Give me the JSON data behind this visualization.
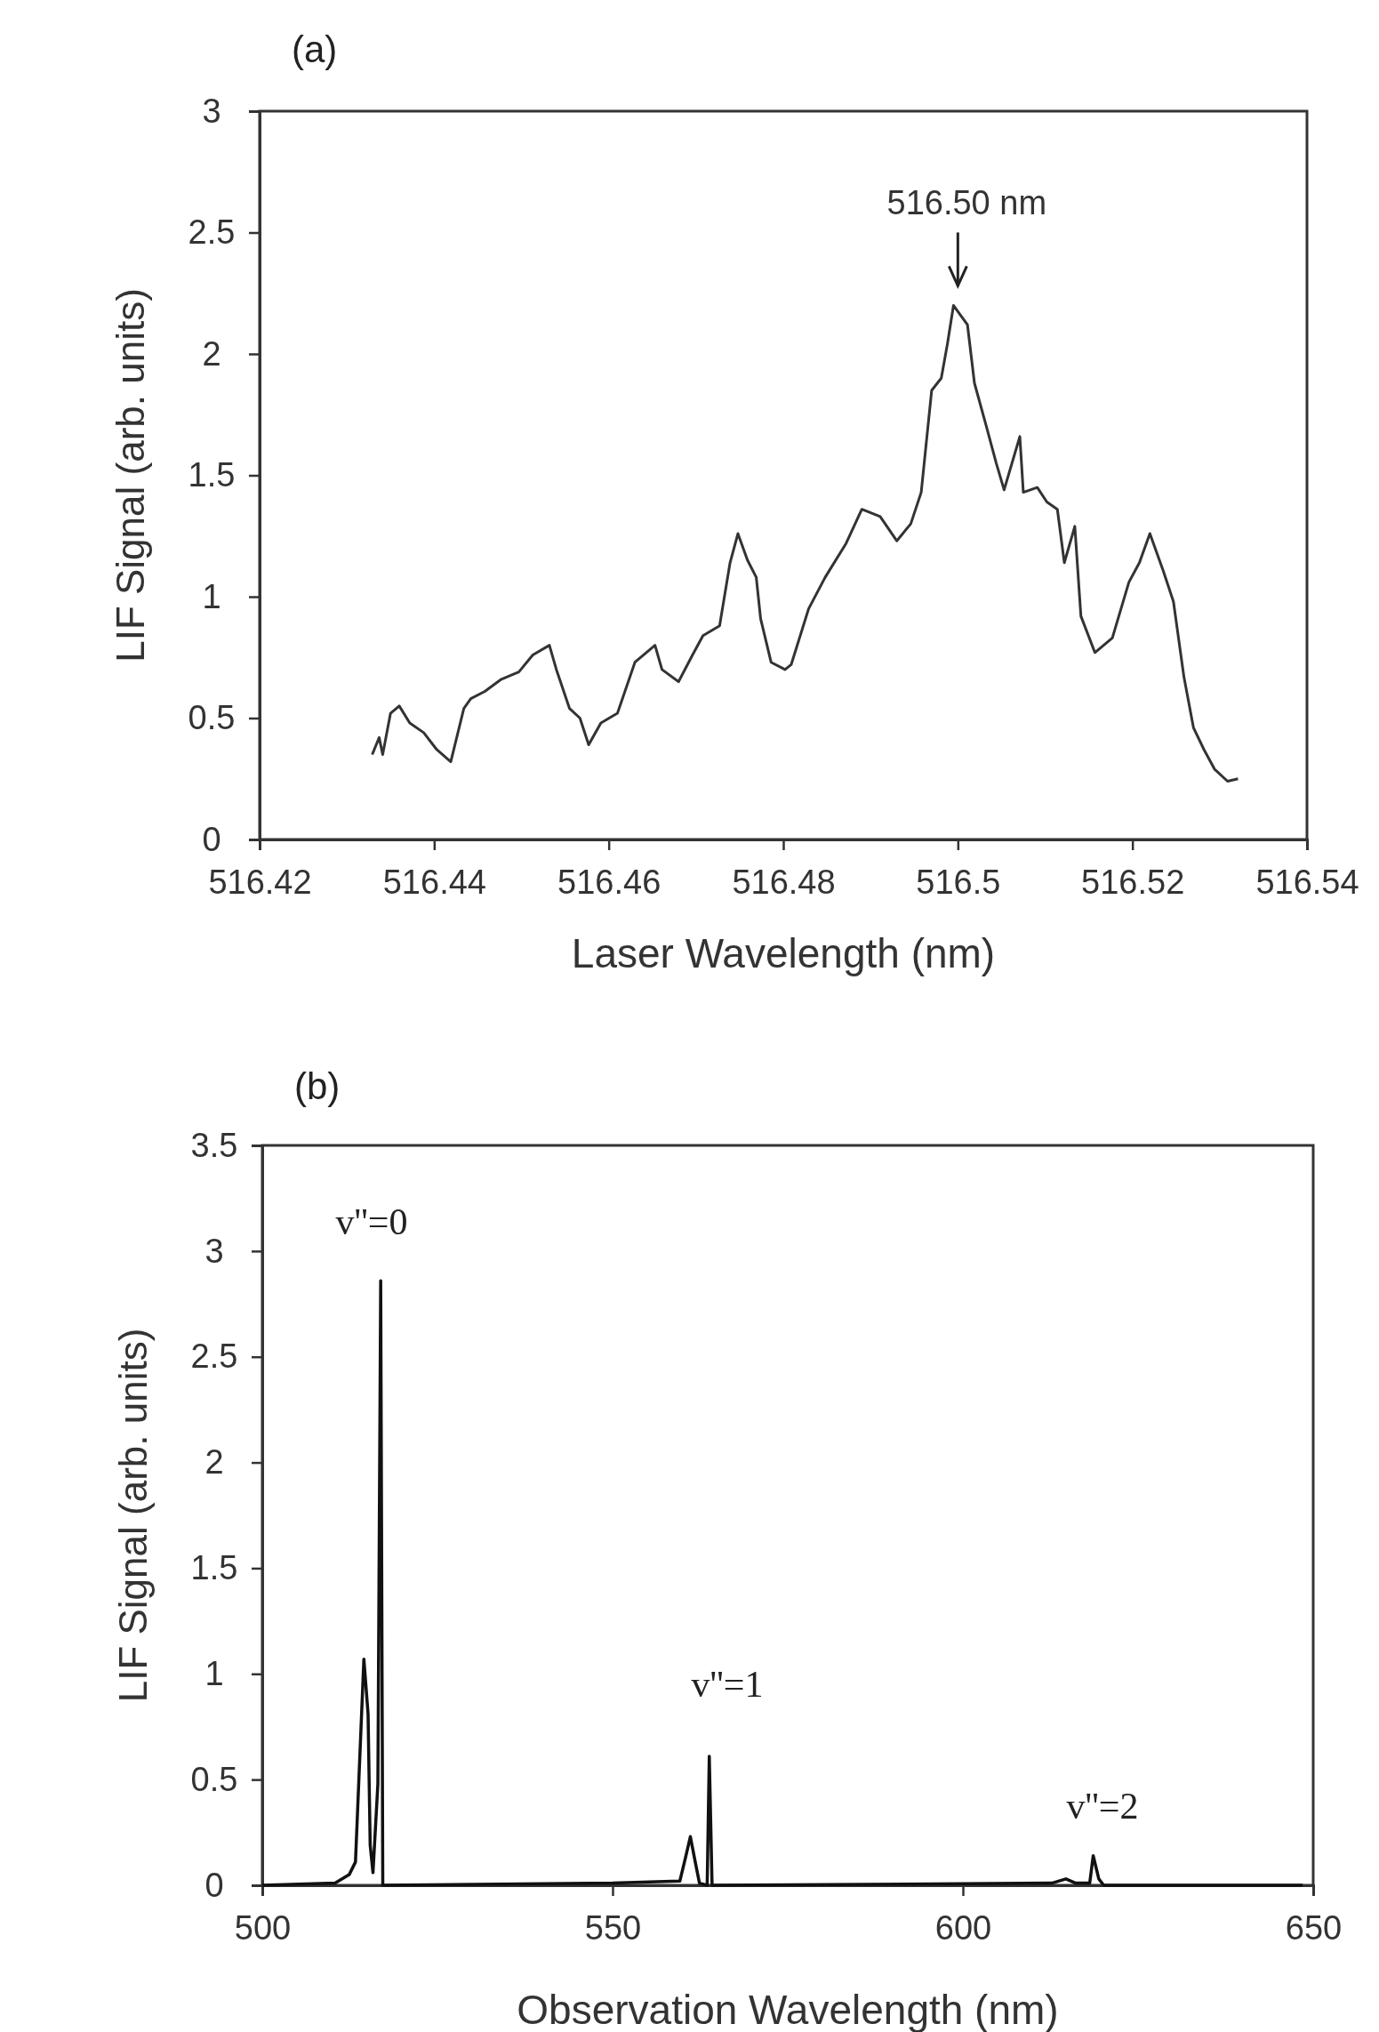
{
  "chart_data": [
    {
      "type": "line",
      "title": "(a)",
      "xlabel": "Laser Wavelength (nm)",
      "ylabel": "LIF Signal (arb. units)",
      "xlim": [
        516.42,
        516.54
      ],
      "xticks": [
        516.42,
        516.44,
        516.46,
        516.48,
        516.5,
        516.52,
        516.54
      ],
      "ylim": [
        0,
        3
      ],
      "yticks": [
        0,
        0.5,
        1,
        1.5,
        2,
        2.5,
        3
      ],
      "grid": false,
      "annotations": [
        {
          "text": "516.50 nm",
          "x": 516.5,
          "y": 2.2
        }
      ],
      "series": [
        {
          "color": "#333333",
          "x": [
            516.4329,
            516.4337,
            516.4341,
            516.435,
            516.436,
            516.4372,
            516.4388,
            516.4403,
            516.4419,
            516.4434,
            516.4442,
            516.4458,
            516.4477,
            516.4497,
            516.4513,
            516.4532,
            516.454,
            516.4555,
            516.4567,
            516.4577,
            516.4591,
            516.461,
            516.463,
            516.4653,
            516.4661,
            516.468,
            516.4696,
            516.4708,
            516.4727,
            516.4739,
            516.4748,
            516.4759,
            516.4769,
            516.4774,
            516.4786,
            516.4802,
            516.4809,
            516.4829,
            516.4848,
            516.4872,
            516.489,
            516.4911,
            516.493,
            516.4946,
            516.4958,
            516.497,
            516.4981,
            516.4988,
            516.4995,
            516.5003,
            516.5011,
            516.5019,
            516.5032,
            516.5044,
            516.5053,
            516.5071,
            516.5075,
            516.5091,
            516.5102,
            516.5114,
            516.5122,
            516.5134,
            516.5141,
            516.5157,
            516.5177,
            516.5196,
            516.5208,
            516.522,
            516.5235,
            516.5247,
            516.5259,
            516.527,
            516.5282,
            516.5294,
            516.5309,
            516.5321
          ],
          "values": [
            0.35,
            0.42,
            0.35,
            0.52,
            0.55,
            0.48,
            0.44,
            0.37,
            0.32,
            0.54,
            0.58,
            0.61,
            0.66,
            0.69,
            0.76,
            0.8,
            0.7,
            0.54,
            0.5,
            0.39,
            0.48,
            0.52,
            0.73,
            0.8,
            0.7,
            0.65,
            0.76,
            0.84,
            0.88,
            1.14,
            1.26,
            1.15,
            1.08,
            0.91,
            0.73,
            0.7,
            0.72,
            0.95,
            1.08,
            1.22,
            1.36,
            1.33,
            1.23,
            1.3,
            1.43,
            1.85,
            1.9,
            2.04,
            2.2,
            2.16,
            2.12,
            1.88,
            1.71,
            1.55,
            1.44,
            1.66,
            1.43,
            1.45,
            1.39,
            1.36,
            1.14,
            1.29,
            0.92,
            0.77,
            0.83,
            1.06,
            1.14,
            1.26,
            1.11,
            0.98,
            0.67,
            0.46,
            0.37,
            0.29,
            0.24,
            0.25
          ]
        }
      ]
    },
    {
      "type": "line",
      "title": "(b)",
      "xlabel": "Observation Wavelength (nm)",
      "ylabel": "LIF Signal (arb. units)",
      "xlim": [
        500,
        650
      ],
      "xticks": [
        500,
        550,
        600,
        650
      ],
      "ylim": [
        0,
        3.5
      ],
      "yticks": [
        0,
        0.5,
        1,
        1.5,
        2,
        2.5,
        3,
        3.5
      ],
      "grid": false,
      "annotations": [
        "v''=0",
        "v''=1",
        "v''=2"
      ],
      "series": [
        {
          "color": "#111111",
          "x": [
            500,
            510.4,
            512.4,
            513.3,
            514.5,
            515.1,
            515.4,
            515.8,
            516.5,
            516.9,
            517.2,
            550,
            559.6,
            560.4,
            561.1,
            561.8,
            562.4,
            563.5,
            563.8,
            564.2,
            612.7,
            614.7,
            616.1,
            618.1,
            618.6,
            619.4,
            620.1,
            648.5
          ],
          "values": [
            0,
            0.01,
            0.05,
            0.11,
            1.07,
            0.81,
            0.19,
            0.06,
            0.48,
            2.86,
            0,
            0.01,
            0.02,
            0.13,
            0.23,
            0.11,
            0.01,
            0,
            0.61,
            0,
            0.01,
            0.03,
            0.01,
            0.01,
            0.14,
            0.03,
            0,
            0
          ]
        }
      ]
    }
  ]
}
